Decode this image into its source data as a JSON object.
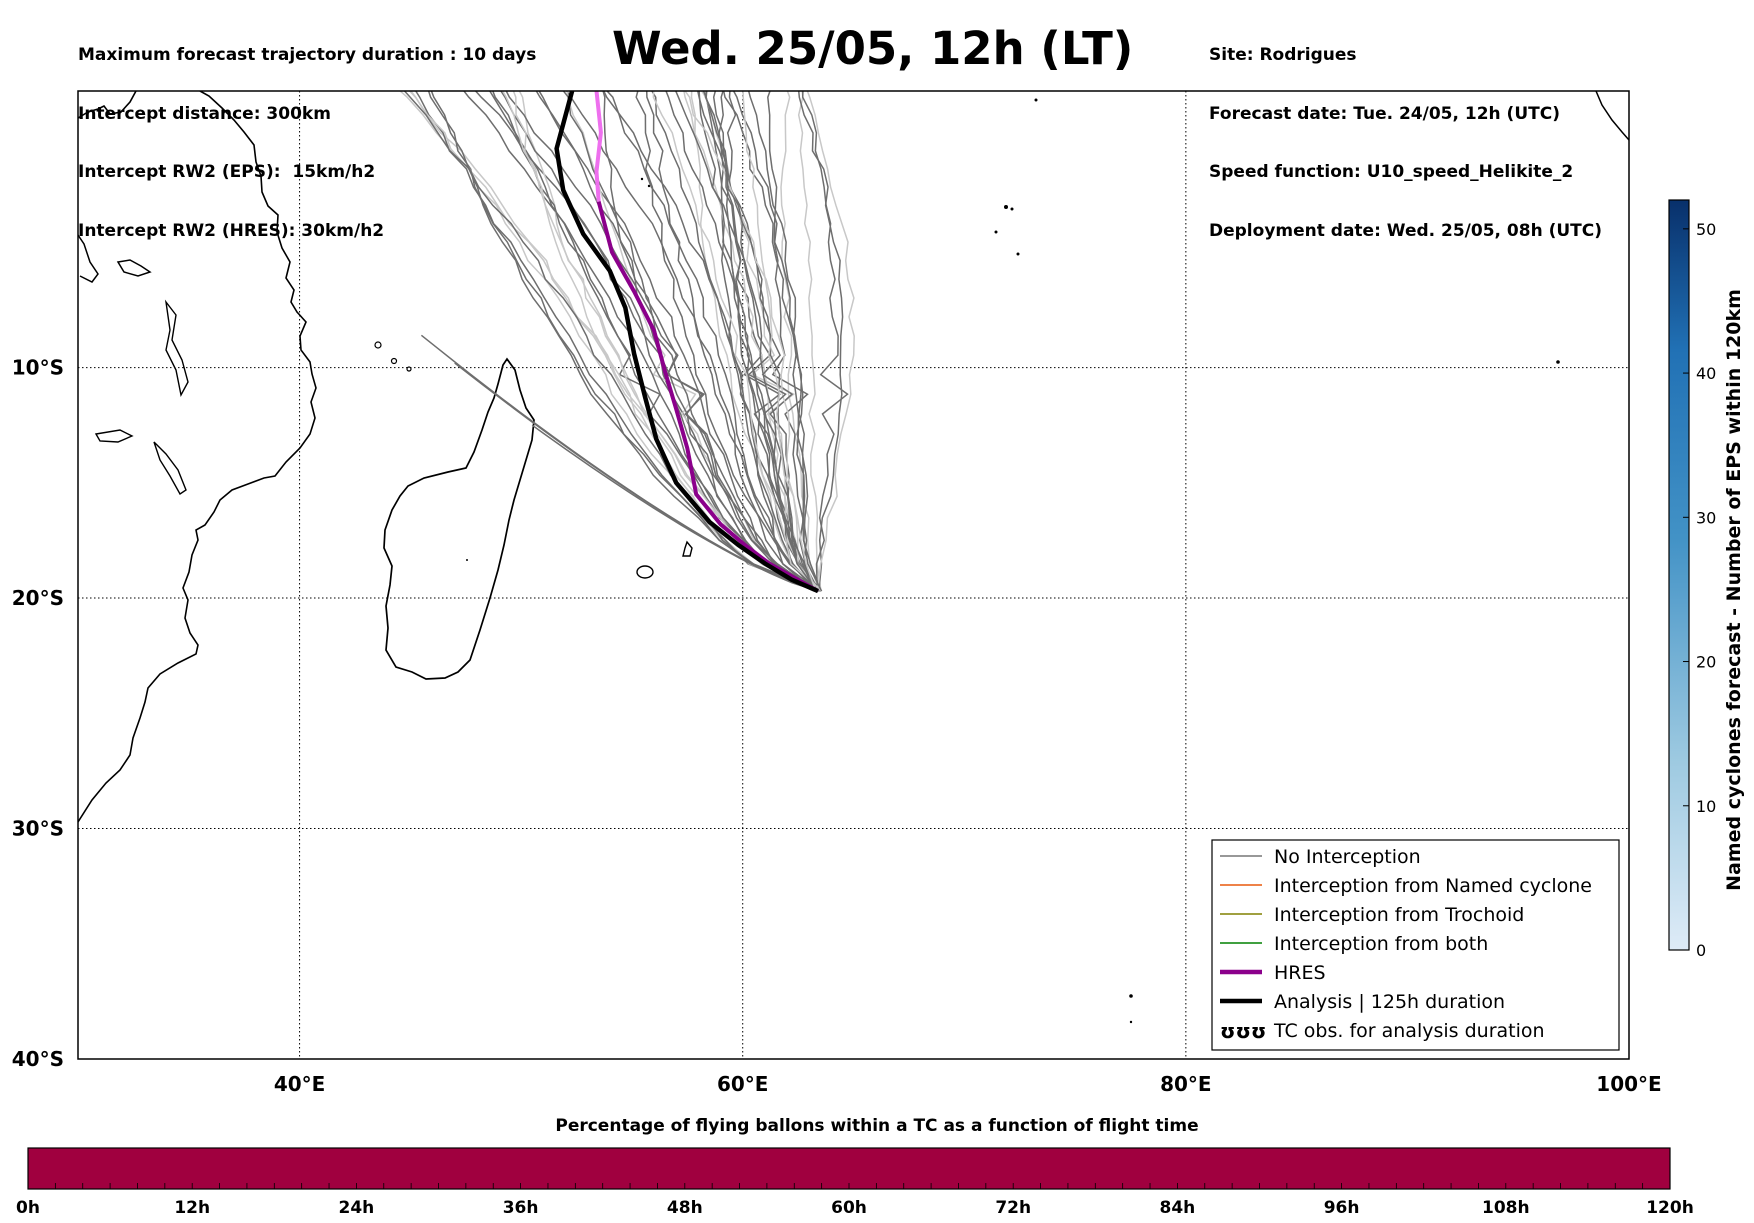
{
  "header": {
    "title": "Wed. 25/05, 12h (LT)",
    "left_lines": [
      "Maximum forecast trajectory duration : 10 days",
      "Intercept distance: 300km",
      "Intercept RW2 (EPS):  15km/h2",
      "Intercept RW2 (HRES): 30km/h2"
    ],
    "right_lines": [
      "Site: Rodrigues",
      "Forecast date: Tue. 24/05, 12h (UTC)",
      "Speed function: U10_speed_Helikite_2",
      "Deployment date: Wed. 25/05, 08h (UTC)"
    ]
  },
  "map": {
    "lon_range": [
      30,
      100
    ],
    "lat_range": [
      -40,
      2
    ],
    "lon_ticks": [
      {
        "value": 40,
        "label": "40°E"
      },
      {
        "value": 60,
        "label": "60°E"
      },
      {
        "value": 80,
        "label": "80°E"
      },
      {
        "value": 100,
        "label": "100°E"
      }
    ],
    "lat_ticks": [
      {
        "value": -10,
        "label": "10°S"
      },
      {
        "value": -20,
        "label": "20°S"
      },
      {
        "value": -30,
        "label": "30°S"
      },
      {
        "value": -40,
        "label": "40°S"
      }
    ],
    "origin": [
      63.4,
      -19.7
    ],
    "hres_track": [
      [
        63.4,
        -19.7
      ],
      [
        62.3,
        -19.1
      ],
      [
        61.2,
        -18.5
      ],
      [
        60.1,
        -17.7
      ],
      [
        59.0,
        -16.8
      ],
      [
        57.9,
        -15.5
      ],
      [
        57.5,
        -13.5
      ],
      [
        57.0,
        -11.8
      ],
      [
        56.5,
        -10.2
      ],
      [
        56.0,
        -8.4
      ],
      [
        55.1,
        -6.7
      ],
      [
        54.1,
        -5.0
      ],
      [
        53.5,
        -2.8
      ],
      [
        53.4,
        -1.5
      ],
      [
        53.6,
        0.2
      ],
      [
        53.4,
        2.0
      ]
    ],
    "analysis_track": [
      [
        63.4,
        -19.7
      ],
      [
        62.2,
        -19.2
      ],
      [
        61.0,
        -18.5
      ],
      [
        59.8,
        -17.7
      ],
      [
        58.5,
        -16.7
      ],
      [
        57.0,
        -15.0
      ],
      [
        56.1,
        -13.1
      ],
      [
        55.6,
        -11.3
      ],
      [
        55.1,
        -9.4
      ],
      [
        54.7,
        -7.4
      ],
      [
        54.0,
        -5.8
      ],
      [
        52.8,
        -4.2
      ],
      [
        51.9,
        -2.3
      ],
      [
        51.6,
        -0.5
      ],
      [
        52.3,
        2.0
      ]
    ],
    "coast_color": "#000000",
    "hres_color": "#8b008b",
    "hres_light_color": "#ee6fee",
    "analysis_color": "#000000",
    "no_interception_color": "#6e6e6e"
  },
  "legend": {
    "items": [
      {
        "label": "No Interception",
        "color": "#777777"
      },
      {
        "label": "Interception from Named cyclone",
        "color": "#e8590c"
      },
      {
        "label": "Interception from Trochoid",
        "color": "#808000"
      },
      {
        "label": "Interception from both",
        "color": "#008000"
      },
      {
        "label": "HRES",
        "color": "#8b008b"
      },
      {
        "label": "Analysis | 125h duration",
        "color": "#000000"
      },
      {
        "label": "TC obs. for analysis duration",
        "color": "#000000"
      }
    ],
    "obs_symbol": "ʊʊʊ"
  },
  "colorbar": {
    "label": "Named cyclones forecast - Number of EPS within 120km",
    "ticks": [
      0,
      10,
      20,
      30,
      40,
      50
    ],
    "min": 0,
    "max": 52,
    "color_low": "#deebf7",
    "color_high": "#08306b"
  },
  "timeline": {
    "title": "Percentage of flying ballons within a TC as a function of flight time",
    "color": "#a0003f",
    "ticks": [
      "0h",
      "12h",
      "24h",
      "36h",
      "48h",
      "60h",
      "72h",
      "84h",
      "96h",
      "108h",
      "120h"
    ]
  }
}
